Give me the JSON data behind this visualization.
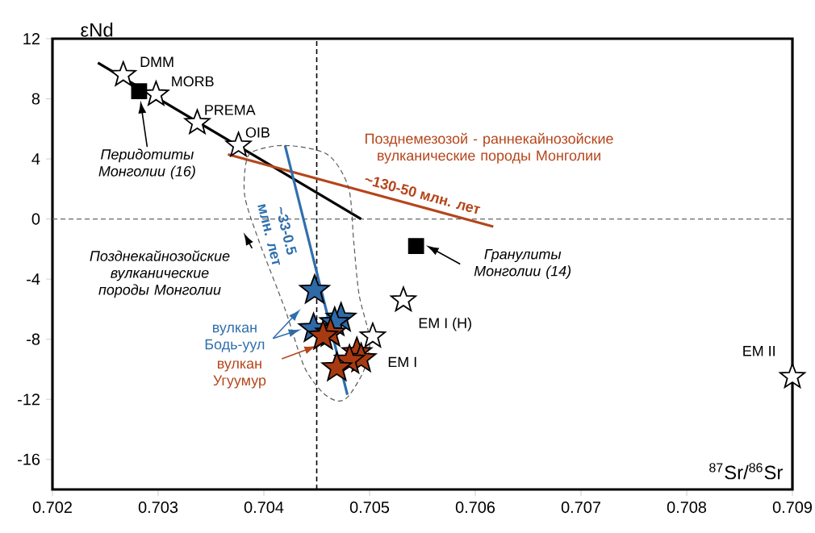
{
  "chart_data": {
    "type": "scatter",
    "xlabel": "$^{87}$Sr/$^{86}$Sr",
    "ylabel": "εNd",
    "xlim": [
      0.702,
      0.709
    ],
    "ylim": [
      -18,
      12
    ],
    "xticks": [
      0.702,
      0.703,
      0.704,
      0.705,
      0.706,
      0.707,
      0.708,
      0.709
    ],
    "yticks": [
      -16,
      -12,
      -8,
      -4,
      0,
      4,
      8,
      12
    ],
    "series": [
      {
        "type": "line",
        "color": "#000000",
        "x": [
          0.70243,
          0.70492
        ],
        "values": [
          10.4,
          0
        ]
      },
      {
        "type": "line",
        "color": "#b5451b",
        "x": [
          0.70366,
          0.70617
        ],
        "values": [
          4.3,
          -0.5
        ]
      },
      {
        "type": "line",
        "color": "#2f6fae",
        "x": [
          0.7042,
          0.70479
        ],
        "values": [
          4.9,
          -11.7
        ]
      },
      {
        "marker": "star",
        "color": "#ffffff",
        "x": [
          0.70267,
          0.70298,
          0.70337,
          0.70376,
          0.70532,
          0.70503,
          0.709
        ],
        "values": [
          9.6,
          8.3,
          6.4,
          4.9,
          -5.4,
          -7.8,
          -10.5
        ]
      },
      {
        "marker": "square",
        "color": "#000000",
        "x": [
          0.70282,
          0.70544
        ],
        "values": [
          8.5,
          -1.8
        ]
      },
      {
        "marker": "star",
        "color": "#2e6aa6",
        "x": [
          0.70448,
          0.70473,
          0.70467,
          0.70447
        ],
        "values": [
          -4.75,
          -6.6,
          -6.9,
          -7.3
        ]
      },
      {
        "marker": "star",
        "color": "#a83a12",
        "x": [
          0.70463,
          0.70456,
          0.70488,
          0.70492,
          0.70481,
          0.70469
        ],
        "values": [
          -7.6,
          -7.8,
          -8.9,
          -9.3,
          -9.4,
          -9.9
        ]
      }
    ],
    "ref_lines": [
      {
        "axis": "x",
        "value": 0.7045,
        "color": "#000000",
        "line_style": "dashed"
      },
      {
        "axis": "y",
        "value": 0,
        "color": "#666666",
        "line_style": "dashed"
      }
    ],
    "annotations": [
      {
        "text": "DMM",
        "x": 0.70267,
        "y": 9.6
      },
      {
        "text": "MORB",
        "x": 0.70298,
        "y": 8.3
      },
      {
        "text": "PREMA",
        "x": 0.70337,
        "y": 6.4
      },
      {
        "text": "OIB",
        "x": 0.70376,
        "y": 4.9
      },
      {
        "text": "EM I (H)",
        "x": 0.70532,
        "y": -5.4
      },
      {
        "text": "EM I",
        "x": 0.70503,
        "y": -7.8
      },
      {
        "text": "EM II",
        "x": 0.709,
        "y": -10.5
      },
      "Перидотиты Монголии (16)",
      "Гранулиты Монголии (14)",
      "Позднекайнозойские вулканические породы Монголии",
      "Позднемезозой - раннекайнозойские вулканические породы Монголии",
      "~130-50 млн. лет",
      "~33-0.5 млн. лет",
      "вулкан Бодь-уул",
      "вулкан Угуумур"
    ]
  }
}
